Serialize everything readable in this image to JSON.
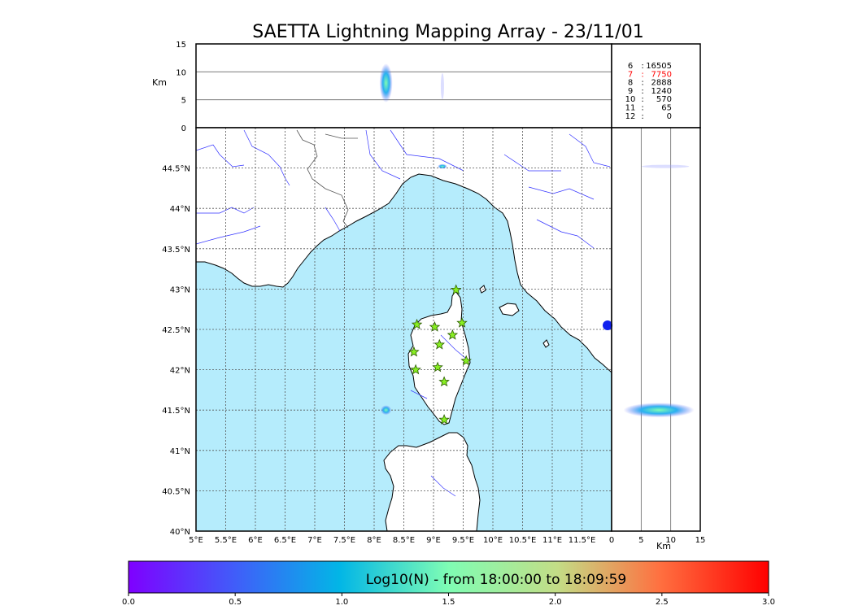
{
  "chart_data": {
    "type": "scatter",
    "title": "SAETTA Lightning Mapping Array - 23/11/01",
    "map": {
      "xlim": [
        5.0,
        12.0
      ],
      "ylim": [
        40.0,
        45.0
      ],
      "x_ticks": [
        "5°E",
        "5.5°E",
        "6°E",
        "6.5°E",
        "7°E",
        "7.5°E",
        "8°E",
        "8.5°E",
        "9°E",
        "9.5°E",
        "10°E",
        "10.5°E",
        "11°E",
        "11.5°E"
      ],
      "y_ticks": [
        "40°N",
        "40.5°N",
        "41°N",
        "41.5°N",
        "42°N",
        "42.5°N",
        "43°N",
        "43.5°N",
        "44°N",
        "44.5°N"
      ],
      "grid": true
    },
    "stations": [
      {
        "lon": 9.38,
        "lat": 42.99
      },
      {
        "lon": 8.72,
        "lat": 42.56
      },
      {
        "lon": 9.02,
        "lat": 42.53
      },
      {
        "lon": 9.48,
        "lat": 42.58
      },
      {
        "lon": 9.32,
        "lat": 42.43
      },
      {
        "lon": 9.1,
        "lat": 42.31
      },
      {
        "lon": 8.67,
        "lat": 42.22
      },
      {
        "lon": 9.55,
        "lat": 42.11
      },
      {
        "lon": 8.7,
        "lat": 42.0
      },
      {
        "lon": 9.07,
        "lat": 42.03
      },
      {
        "lon": 9.18,
        "lat": 41.85
      },
      {
        "lon": 9.18,
        "lat": 41.38
      }
    ],
    "sources": [
      {
        "lon": 8.2,
        "lat": 41.5,
        "spread_lon": 0.09,
        "spread_lat": 0.06
      },
      {
        "lon": 9.15,
        "lat": 44.52,
        "spread_lon": 0.08,
        "spread_lat": 0.03
      }
    ],
    "altitude_top": {
      "ylabel": "Km",
      "ylim": [
        0,
        15
      ],
      "y_ticks": [
        "0",
        "5",
        "10",
        "15"
      ],
      "lines": [
        5,
        10
      ],
      "cloud": {
        "lon": 8.2,
        "alt_range": [
          4.5,
          11.5
        ]
      }
    },
    "altitude_side": {
      "xlabel": "Km",
      "xlim": [
        0,
        15
      ],
      "x_ticks": [
        "0",
        "5",
        "10",
        "15"
      ],
      "lines": [
        5,
        10
      ],
      "cloud": {
        "lat": 41.5,
        "alt_range": [
          2.0,
          14.0
        ]
      }
    },
    "station_counts": [
      {
        "stations": "6",
        "count": "16505",
        "color": "#000000"
      },
      {
        "stations": "7",
        "count": "7750",
        "color": "#ff0000"
      },
      {
        "stations": "8",
        "count": "2888",
        "color": "#000000"
      },
      {
        "stations": "9",
        "count": "1240",
        "color": "#000000"
      },
      {
        "stations": "10",
        "count": "570",
        "color": "#000000"
      },
      {
        "stations": "11",
        "count": "65",
        "color": "#000000"
      },
      {
        "stations": "12",
        "count": "0",
        "color": "#000000"
      }
    ],
    "colorbar": {
      "label": "Log10(N) - from 18:00:00 to 18:09:59",
      "range": [
        0.0,
        3.0
      ],
      "ticks": [
        "0.0",
        "0.5",
        "1.0",
        "1.5",
        "2.0",
        "2.5",
        "3.0"
      ],
      "colormap": "rainbow"
    },
    "colors": {
      "sea": "#b5ecfc",
      "land": "#ffffff",
      "coast": "#000000",
      "rivers": "#3333ff",
      "borders": "#555555",
      "station_fill": "#88ee22",
      "grid": "#555555"
    }
  }
}
